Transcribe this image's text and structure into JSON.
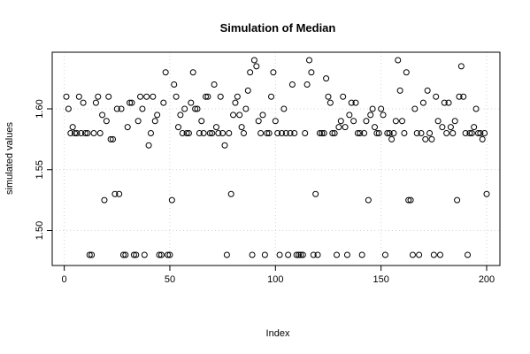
{
  "chart_data": {
    "type": "scatter",
    "title": "Simulation of Median",
    "xlabel": "Index",
    "ylabel": "simulated values",
    "xlim": [
      1,
      200
    ],
    "ylim": [
      1.48,
      1.64
    ],
    "xticks": [
      0,
      50,
      100,
      150,
      200
    ],
    "xtick_labels": [
      "0",
      "50",
      "100",
      "150",
      "200"
    ],
    "yticks": [
      1.5,
      1.55,
      1.6
    ],
    "ytick_labels": [
      "1.50",
      "1.55",
      "1.60"
    ],
    "grid": true,
    "marker": "open-circle",
    "x": [
      1,
      2,
      3,
      4,
      5,
      6,
      7,
      8,
      9,
      10,
      11,
      12,
      13,
      14,
      15,
      16,
      17,
      18,
      19,
      20,
      21,
      22,
      23,
      24,
      25,
      26,
      27,
      28,
      29,
      30,
      31,
      32,
      33,
      34,
      35,
      36,
      37,
      38,
      39,
      40,
      41,
      42,
      43,
      44,
      45,
      46,
      47,
      48,
      49,
      50,
      51,
      52,
      53,
      54,
      55,
      56,
      57,
      58,
      59,
      60,
      61,
      62,
      63,
      64,
      65,
      66,
      67,
      68,
      69,
      70,
      71,
      72,
      73,
      74,
      75,
      76,
      77,
      78,
      79,
      80,
      81,
      82,
      83,
      84,
      85,
      86,
      87,
      88,
      89,
      90,
      91,
      92,
      93,
      94,
      95,
      96,
      97,
      98,
      99,
      100,
      101,
      102,
      103,
      104,
      105,
      106,
      107,
      108,
      109,
      110,
      111,
      112,
      113,
      114,
      115,
      116,
      117,
      118,
      119,
      120,
      121,
      122,
      123,
      124,
      125,
      126,
      127,
      128,
      129,
      130,
      131,
      132,
      133,
      134,
      135,
      136,
      137,
      138,
      139,
      140,
      141,
      142,
      143,
      144,
      145,
      146,
      147,
      148,
      149,
      150,
      151,
      152,
      153,
      154,
      155,
      156,
      157,
      158,
      159,
      160,
      161,
      162,
      163,
      164,
      165,
      166,
      167,
      168,
      169,
      170,
      171,
      172,
      173,
      174,
      175,
      176,
      177,
      178,
      179,
      180,
      181,
      182,
      183,
      184,
      185,
      186,
      187,
      188,
      189,
      190,
      191,
      192,
      193,
      194,
      195,
      196,
      197,
      198,
      199,
      200
    ],
    "y": [
      1.61,
      1.6,
      1.58,
      1.585,
      1.58,
      1.58,
      1.61,
      1.58,
      1.605,
      1.58,
      1.58,
      1.48,
      1.48,
      1.58,
      1.605,
      1.61,
      1.58,
      1.595,
      1.525,
      1.59,
      1.61,
      1.575,
      1.575,
      1.53,
      1.6,
      1.53,
      1.6,
      1.48,
      1.48,
      1.585,
      1.605,
      1.605,
      1.48,
      1.48,
      1.59,
      1.61,
      1.6,
      1.48,
      1.61,
      1.57,
      1.58,
      1.61,
      1.59,
      1.595,
      1.48,
      1.48,
      1.605,
      1.63,
      1.48,
      1.48,
      1.525,
      1.62,
      1.61,
      1.585,
      1.595,
      1.58,
      1.6,
      1.58,
      1.58,
      1.605,
      1.63,
      1.6,
      1.6,
      1.58,
      1.59,
      1.58,
      1.61,
      1.61,
      1.58,
      1.58,
      1.62,
      1.585,
      1.58,
      1.61,
      1.58,
      1.57,
      1.48,
      1.58,
      1.53,
      1.595,
      1.605,
      1.61,
      1.595,
      1.585,
      1.58,
      1.6,
      1.615,
      1.63,
      1.48,
      1.64,
      1.635,
      1.59,
      1.58,
      1.595,
      1.48,
      1.58,
      1.58,
      1.61,
      1.63,
      1.59,
      1.58,
      1.48,
      1.58,
      1.6,
      1.58,
      1.48,
      1.58,
      1.62,
      1.58,
      1.48,
      1.48,
      1.48,
      1.48,
      1.58,
      1.62,
      1.64,
      1.63,
      1.48,
      1.53,
      1.48,
      1.58,
      1.58,
      1.58,
      1.625,
      1.61,
      1.605,
      1.58,
      1.58,
      1.48,
      1.585,
      1.59,
      1.61,
      1.585,
      1.48,
      1.595,
      1.605,
      1.59,
      1.605,
      1.58,
      1.58,
      1.48,
      1.58,
      1.59,
      1.525,
      1.595,
      1.6,
      1.585,
      1.58,
      1.58,
      1.6,
      1.595,
      1.48,
      1.58,
      1.58,
      1.575,
      1.58,
      1.59,
      1.64,
      1.615,
      1.59,
      1.58,
      1.63,
      1.525,
      1.525,
      1.48,
      1.6,
      1.58,
      1.48,
      1.58,
      1.605,
      1.575,
      1.615,
      1.58,
      1.575,
      1.48,
      1.61,
      1.59,
      1.48,
      1.585,
      1.605,
      1.58,
      1.605,
      1.585,
      1.58,
      1.59,
      1.525,
      1.61,
      1.635,
      1.61,
      1.58,
      1.48,
      1.58,
      1.58,
      1.585,
      1.6,
      1.58,
      1.58,
      1.575,
      1.58,
      1.53
    ]
  }
}
